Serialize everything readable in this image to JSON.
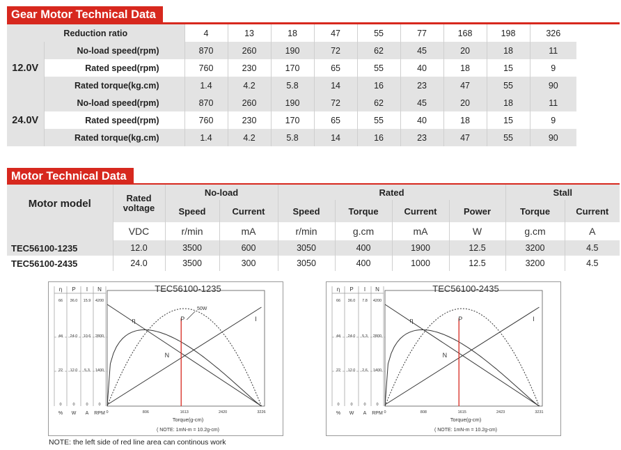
{
  "gear": {
    "title": "Gear Motor Technical Data",
    "ratio_label": "Reduction ratio",
    "ratios": [
      "4",
      "13",
      "18",
      "47",
      "55",
      "77",
      "168",
      "198",
      "326"
    ],
    "groups": [
      {
        "voltage": "12.0V",
        "rows": [
          {
            "label": "No-load speed(rpm)",
            "values": [
              "870",
              "260",
              "190",
              "72",
              "62",
              "45",
              "20",
              "18",
              "11"
            ]
          },
          {
            "label": "Rated speed(rpm)",
            "values": [
              "760",
              "230",
              "170",
              "65",
              "55",
              "40",
              "18",
              "15",
              "9"
            ]
          },
          {
            "label": "Rated torque(kg.cm)",
            "values": [
              "1.4",
              "4.2",
              "5.8",
              "14",
              "16",
              "23",
              "47",
              "55",
              "90"
            ]
          }
        ]
      },
      {
        "voltage": "24.0V",
        "rows": [
          {
            "label": "No-load speed(rpm)",
            "values": [
              "870",
              "260",
              "190",
              "72",
              "62",
              "45",
              "20",
              "18",
              "11"
            ]
          },
          {
            "label": "Rated speed(rpm)",
            "values": [
              "760",
              "230",
              "170",
              "65",
              "55",
              "40",
              "18",
              "15",
              "9"
            ]
          },
          {
            "label": "Rated torque(kg.cm)",
            "values": [
              "1.4",
              "4.2",
              "5.8",
              "14",
              "16",
              "23",
              "47",
              "55",
              "90"
            ]
          }
        ]
      }
    ]
  },
  "motor": {
    "title": "Motor Technical Data",
    "model_header": "Motor model",
    "rated_voltage_header": "Rated voltage",
    "groups": {
      "noload": "No-load",
      "rated": "Rated",
      "stall": "Stall"
    },
    "sub": {
      "speed": "Speed",
      "current": "Current",
      "torque": "Torque",
      "power": "Power"
    },
    "units": [
      "VDC",
      "r/min",
      "mA",
      "r/min",
      "g.cm",
      "mA",
      "W",
      "g.cm",
      "A"
    ],
    "rows": [
      {
        "model": "TEC56100-1235",
        "values": [
          "12.0",
          "3500",
          "600",
          "3050",
          "400",
          "1900",
          "12.5",
          "3200",
          "4.5"
        ]
      },
      {
        "model": "TEC56100-2435",
        "values": [
          "24.0",
          "3500",
          "300",
          "3050",
          "400",
          "1000",
          "12.5",
          "3200",
          "4.5"
        ]
      }
    ]
  },
  "charts": [
    {
      "title": "TEC56100-1235",
      "col_heads": [
        "η",
        "P",
        "I",
        "N"
      ],
      "axis_units": [
        "%",
        "W",
        "A",
        "RPM"
      ],
      "scale_rows": [
        [
          "66",
          "36.0",
          "15.9",
          "4200"
        ],
        [
          "44",
          "24.0",
          "10.6",
          "2800"
        ],
        [
          "22",
          "12.0",
          "5.3",
          "1400"
        ],
        [
          "0",
          "0",
          "0",
          "0"
        ]
      ],
      "x_ticks": [
        "0",
        "806",
        "1613",
        "2420",
        "3226"
      ],
      "xlabel": "Torque(g-cm)",
      "note": "( NOTE: 1mN-m = 10.2g-cm)",
      "curve_labels": {
        "eff": "η",
        "power": "P",
        "current": "I",
        "speed": "N",
        "peak": "50W"
      }
    },
    {
      "title": "TEC56100-2435",
      "col_heads": [
        "η",
        "P",
        "I",
        "N"
      ],
      "axis_units": [
        "%",
        "W",
        "A",
        "RPM"
      ],
      "scale_rows": [
        [
          "66",
          "36.0",
          "7.8",
          "4200"
        ],
        [
          "44",
          "24.0",
          "5.3",
          "2800"
        ],
        [
          "22",
          "12.0",
          "2.6",
          "1400"
        ],
        [
          "0",
          "0",
          "0",
          "0"
        ]
      ],
      "x_ticks": [
        "0",
        "808",
        "1615",
        "2423",
        "3231"
      ],
      "xlabel": "Torque(g-cm)",
      "note": "( NOTE: 1mN-m = 10.2g-cm)",
      "curve_labels": {
        "eff": "η",
        "power": "P",
        "current": "I",
        "speed": "N"
      }
    }
  ],
  "bottom_note": "NOTE: the left side of red line area can continous work",
  "colors": {
    "accent": "#d7281e",
    "shade": "#e3e3e3"
  }
}
